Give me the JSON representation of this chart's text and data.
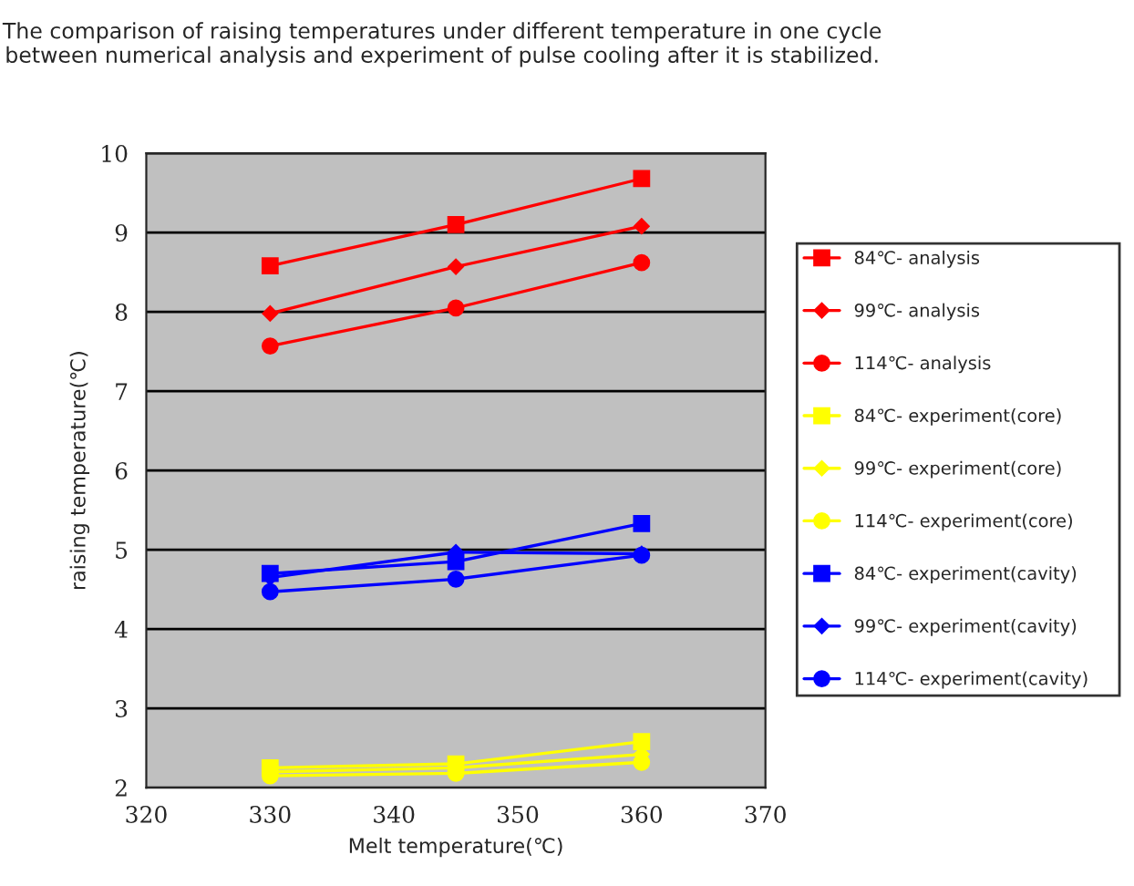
{
  "chart_data": {
    "type": "line",
    "title": "The comparison of raising temperatures under different temperature in one cycle between numerical analysis and experiment of pulse cooling after it is stabilized.",
    "xlabel": "Melt temperature(℃)",
    "ylabel": "raising temperature(℃)",
    "x": [
      330,
      345,
      360
    ],
    "series": [
      {
        "name": "84℃- analysis",
        "color": "#ff0000",
        "marker": "square",
        "values": [
          8.58,
          9.1,
          9.68
        ]
      },
      {
        "name": "99℃- analysis",
        "color": "#ff0000",
        "marker": "diamond",
        "values": [
          7.98,
          8.57,
          9.08
        ]
      },
      {
        "name": "114℃- analysis",
        "color": "#ff0000",
        "marker": "circle",
        "values": [
          7.57,
          8.05,
          8.62
        ]
      },
      {
        "name": "84℃- experiment(core)",
        "color": "#ffff00",
        "marker": "square",
        "values": [
          2.25,
          2.3,
          2.58
        ]
      },
      {
        "name": "99℃- experiment(core)",
        "color": "#ffff00",
        "marker": "diamond",
        "values": [
          2.2,
          2.25,
          2.42
        ]
      },
      {
        "name": "114℃- experiment(core)",
        "color": "#ffff00",
        "marker": "circle",
        "values": [
          2.15,
          2.18,
          2.32
        ]
      },
      {
        "name": "84℃- experiment(cavity)",
        "color": "#0000ff",
        "marker": "square",
        "values": [
          4.7,
          4.85,
          5.33
        ]
      },
      {
        "name": "99℃- experiment(cavity)",
        "color": "#0000ff",
        "marker": "diamond",
        "values": [
          4.65,
          4.97,
          4.95
        ]
      },
      {
        "name": "114℃- experiment(cavity)",
        "color": "#0000ff",
        "marker": "circle",
        "values": [
          4.47,
          4.63,
          4.93
        ]
      }
    ],
    "xlim": [
      320,
      370
    ],
    "xticks": [
      320,
      330,
      340,
      350,
      360,
      370
    ],
    "ylim": [
      2,
      10
    ],
    "yticks": [
      2,
      3,
      4,
      5,
      6,
      7,
      8,
      9,
      10
    ],
    "grid": "y",
    "legend": "right",
    "line_style": "solid"
  }
}
